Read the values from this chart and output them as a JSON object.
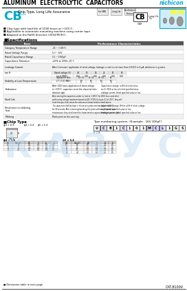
{
  "title": "ALUMINUM  ELECTROLYTIC  CAPACITORS",
  "brand": "nichicon",
  "series": "CB",
  "series_desc": "Chip Type, Long Life Assurance",
  "series_color": "#00aacc",
  "new_badge": "NEW",
  "features": [
    "■ Chip type with load life of 1000 hours at +105°C.",
    "■ Applicable to automatic mounting machine using carrier tape.",
    "■ Adapted to the RoHS directive (2002/95/EC)."
  ],
  "spec_title": "■Specifications",
  "spec_headers": [
    "Item",
    "Performance Characteristics"
  ],
  "chip_type_title": "■Chip Type",
  "type_numbering_title": "Type numbering system. (Example : 16V 100μF)",
  "cat_number": "CAT.8100V",
  "bg_color": "#ffffff",
  "header_bg": "#555555",
  "header_fg": "#ffffff",
  "row_alt_bg": "#f0f0f0",
  "blue_box_color": "#d0eef8",
  "type_code": [
    "U",
    "C",
    "B",
    "1",
    "C",
    "1",
    "0",
    "1",
    "M",
    "C",
    "L",
    "1",
    "G",
    "S"
  ]
}
